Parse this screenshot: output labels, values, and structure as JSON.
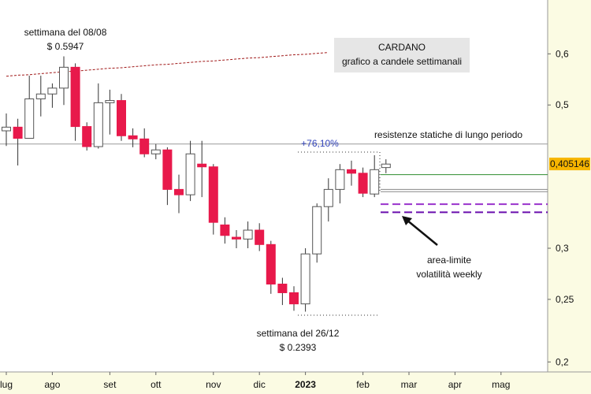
{
  "chart_data": {
    "type": "candlestick",
    "log_scale": true,
    "categories": [
      "lug",
      null,
      null,
      null,
      "ago",
      null,
      null,
      null,
      null,
      "set",
      null,
      null,
      null,
      "ott",
      null,
      null,
      null,
      null,
      "nov",
      null,
      null,
      null,
      "dic",
      null,
      null,
      null,
      "2023",
      null,
      null,
      null,
      null,
      "feb",
      null,
      null,
      null,
      "mar",
      null,
      null,
      null,
      "apr",
      null,
      null,
      null,
      "mag",
      null,
      null,
      null,
      null
    ],
    "open": [
      0.456,
      0.462,
      0.444,
      0.511,
      0.52,
      0.531,
      0.572,
      0.463,
      0.431,
      0.504,
      0.508,
      0.448,
      0.443,
      0.42,
      0.426,
      0.37,
      0.363,
      0.405,
      0.401,
      0.326,
      0.312,
      0.31,
      0.32,
      0.304,
      0.264,
      0.256,
      0.246,
      0.294,
      0.348,
      0.37,
      0.397,
      0.392,
      0.364,
      0.4,
      null,
      null,
      null,
      null,
      null,
      null,
      null,
      null,
      null,
      null,
      null,
      null,
      null,
      null
    ],
    "high": [
      0.485,
      0.476,
      0.555,
      0.555,
      0.54,
      0.5947,
      0.58,
      0.47,
      0.54,
      0.528,
      0.52,
      0.46,
      0.46,
      0.435,
      0.43,
      0.39,
      0.44,
      0.44,
      0.405,
      0.335,
      0.32,
      0.33,
      0.328,
      0.308,
      0.27,
      0.262,
      0.3,
      0.352,
      0.385,
      0.405,
      0.41,
      0.4,
      0.418,
      0.412,
      null,
      null,
      null,
      null,
      null,
      null,
      null,
      null,
      null,
      null,
      null,
      null,
      null,
      null
    ],
    "low": [
      0.432,
      0.403,
      0.444,
      0.48,
      0.495,
      0.5,
      0.44,
      0.425,
      0.428,
      0.45,
      0.44,
      0.43,
      0.415,
      0.412,
      0.35,
      0.34,
      0.355,
      0.36,
      0.315,
      0.305,
      0.3,
      0.3,
      0.297,
      0.255,
      0.245,
      0.24,
      0.2393,
      0.285,
      0.33,
      0.352,
      0.375,
      0.36,
      0.36,
      0.392,
      null,
      null,
      null,
      null,
      null,
      null,
      null,
      null,
      null,
      null,
      null,
      null,
      null,
      null
    ],
    "close": [
      0.462,
      0.444,
      0.511,
      0.52,
      0.531,
      0.572,
      0.463,
      0.431,
      0.504,
      0.508,
      0.448,
      0.443,
      0.42,
      0.426,
      0.37,
      0.363,
      0.42,
      0.401,
      0.329,
      0.314,
      0.31,
      0.32,
      0.304,
      0.264,
      0.256,
      0.246,
      0.294,
      0.348,
      0.37,
      0.397,
      0.392,
      0.365,
      0.397,
      0.405,
      null,
      null,
      null,
      null,
      null,
      null,
      null,
      null,
      null,
      null,
      null,
      null,
      null,
      null
    ],
    "up_color": "#ffffff",
    "down_color": "#e8194b",
    "moving_average": {
      "color": "#a01818",
      "values": [
        0.554,
        0.556,
        0.557,
        0.559,
        0.561,
        0.563,
        0.564,
        0.566,
        0.568,
        0.57,
        0.571,
        0.573,
        0.575,
        0.577,
        0.578,
        0.58,
        0.582,
        0.584,
        0.585,
        0.587,
        0.589,
        0.591,
        0.592,
        0.594,
        0.596,
        0.598,
        0.599,
        0.601,
        0.603,
        null,
        null,
        null,
        null,
        null,
        null,
        null,
        null,
        null,
        null,
        null,
        null,
        null,
        null,
        null,
        null,
        null,
        null,
        null
      ]
    },
    "resistance": {
      "value": 0.435,
      "color": "#9a9a9a"
    },
    "levels": [
      {
        "value": 0.39,
        "color": "#2e8b2e",
        "dashed": false
      },
      {
        "value": 0.37,
        "color": "#888888",
        "dashed": false
      },
      {
        "value": 0.367,
        "color": "#888888",
        "dashed": false
      },
      {
        "value": 0.351,
        "color": "#9933cc",
        "dashed": true
      },
      {
        "value": 0.341,
        "color": "#6a0dad",
        "dashed": true
      }
    ],
    "price_line": {
      "value": 0.405146,
      "label": "0,405146"
    },
    "ylim": [
      0.193,
      0.727
    ],
    "yticks": [
      {
        "value": 0.2,
        "label": "0,2"
      },
      {
        "value": 0.25,
        "label": "0,25"
      },
      {
        "value": 0.3,
        "label": "0,3"
      },
      {
        "value": 0.5,
        "label": "0,5"
      },
      {
        "value": 0.6,
        "label": "0,6"
      }
    ],
    "legend": {
      "title": "CARDANO",
      "subtitle": "grafico a candele settimanali"
    },
    "annotations": {
      "high_week": "settimana del 08/08",
      "high_price": "$ 0.5947",
      "low_week": "settimana del 26/12",
      "low_price": "$ 0.2393",
      "gain": "+76,10%",
      "resistance_note": "resistenze statiche di lungo periodo",
      "area_note_1": "area-limite",
      "area_note_2": "volatilità weekly"
    }
  }
}
